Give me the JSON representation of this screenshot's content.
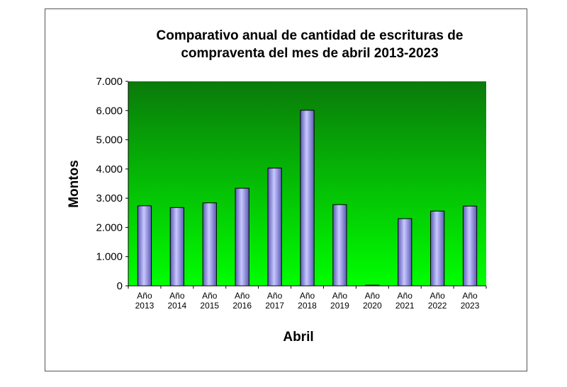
{
  "chart_data": {
    "type": "bar",
    "title": [
      "Comparativo anual de cantidad de escrituras de",
      "compraventa del mes de abril 2013-2023"
    ],
    "xlabel": "Abril",
    "ylabel": "Montos",
    "categories": [
      [
        "Año",
        "2013"
      ],
      [
        "Año",
        "2014"
      ],
      [
        "Año",
        "2015"
      ],
      [
        "Año",
        "2016"
      ],
      [
        "Año",
        "2017"
      ],
      [
        "Año",
        "2018"
      ],
      [
        "Año",
        "2019"
      ],
      [
        "Año",
        "2020"
      ],
      [
        "Año",
        "2021"
      ],
      [
        "Año",
        "2022"
      ],
      [
        "Año",
        "2023"
      ]
    ],
    "values": [
      2740,
      2680,
      2840,
      3340,
      4030,
      6010,
      2780,
      20,
      2300,
      2560,
      2730
    ],
    "ylim": [
      0,
      7000
    ],
    "yticks": [
      0,
      1000,
      2000,
      3000,
      4000,
      5000,
      6000,
      7000
    ],
    "ytick_labels": [
      "0",
      "1.000",
      "2.000",
      "3.000",
      "4.000",
      "5.000",
      "6.000",
      "7.000"
    ],
    "legend": "none",
    "grid": false,
    "colors": {
      "plot_top": "#0a7a0a",
      "plot_bottom": "#00ff00",
      "bar_fill_light": "#c8c8ff",
      "bar_fill_dark": "#5a5ab4",
      "bar_stroke": "#000000"
    }
  }
}
